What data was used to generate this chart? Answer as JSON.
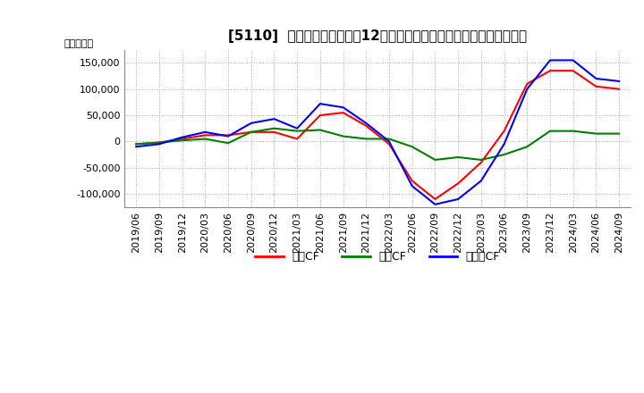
{
  "title": "[5110]  キャッシュフローの12か月移動合計の対前年同期増減額の推移",
  "ylabel": "（百万円）",
  "legend_labels": [
    "営業CF",
    "投資CF",
    "フリーCF"
  ],
  "legend_colors": [
    "#ff0000",
    "#008000",
    "#0000ff"
  ],
  "x_labels": [
    "2019/06",
    "2019/09",
    "2019/12",
    "2020/03",
    "2020/06",
    "2020/09",
    "2020/12",
    "2021/03",
    "2021/06",
    "2021/09",
    "2021/12",
    "2022/03",
    "2022/06",
    "2022/09",
    "2022/12",
    "2023/03",
    "2023/06",
    "2023/09",
    "2023/12",
    "2024/03",
    "2024/06",
    "2024/09"
  ],
  "営業CF": [
    -5000,
    -2000,
    5000,
    12000,
    12000,
    18000,
    18000,
    5000,
    50000,
    55000,
    30000,
    -5000,
    -75000,
    -110000,
    -80000,
    -40000,
    20000,
    110000,
    135000,
    135000,
    105000,
    100000
  ],
  "投資CF": [
    -5000,
    -2000,
    2000,
    5000,
    -3000,
    18000,
    25000,
    20000,
    22000,
    10000,
    5000,
    5000,
    -10000,
    -35000,
    -30000,
    -35000,
    -25000,
    -10000,
    20000,
    20000,
    15000,
    15000
  ],
  "フリーCF": [
    -10000,
    -5000,
    8000,
    18000,
    10000,
    35000,
    43000,
    25000,
    72000,
    65000,
    35000,
    0,
    -85000,
    -120000,
    -110000,
    -75000,
    -5000,
    100000,
    155000,
    155000,
    120000,
    115000
  ],
  "ylim": [
    -125000,
    175000
  ],
  "yticks": [
    -100000,
    -50000,
    0,
    50000,
    100000,
    150000
  ],
  "background_color": "#ffffff",
  "grid_color": "#aaaaaa",
  "title_fontsize": 11,
  "tick_fontsize": 8,
  "ylabel_fontsize": 8
}
